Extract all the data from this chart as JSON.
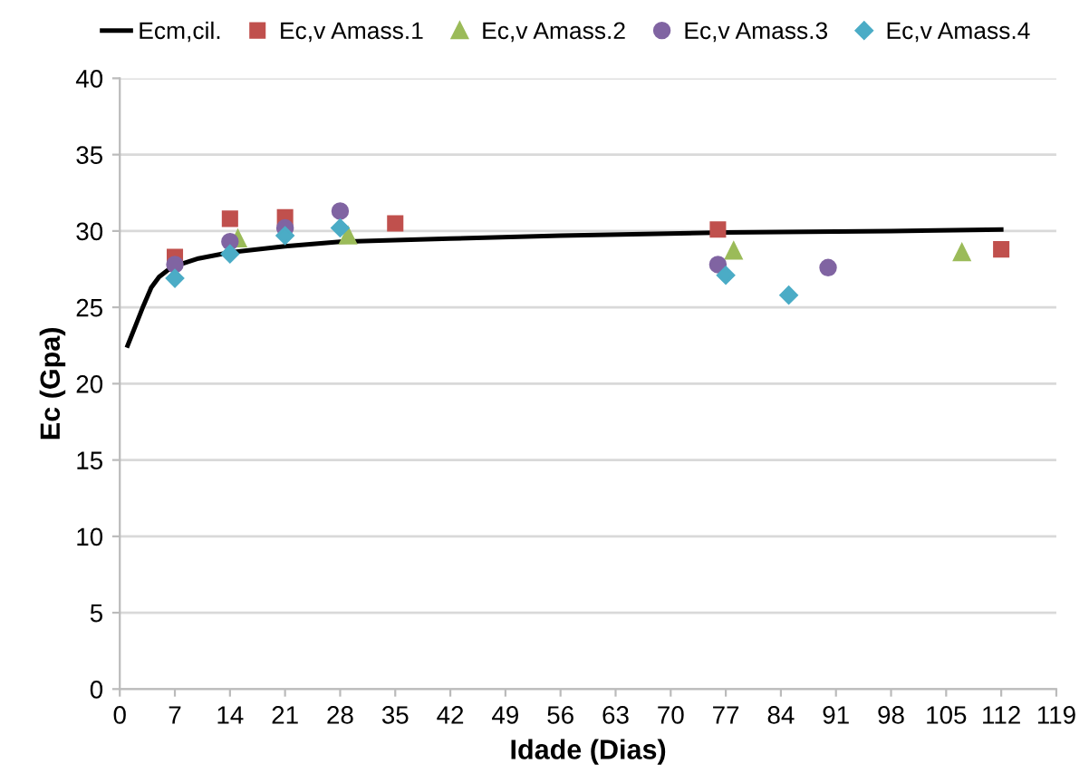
{
  "chart_data": {
    "type": "scatter",
    "xlabel": "Idade (Dias)",
    "ylabel": "Ec (Gpa)",
    "xlim": [
      0,
      119
    ],
    "xticks": [
      0,
      7,
      14,
      21,
      28,
      35,
      42,
      49,
      56,
      63,
      70,
      77,
      84,
      91,
      98,
      105,
      112,
      119
    ],
    "ylim": [
      0,
      40
    ],
    "yticks": [
      0,
      5,
      10,
      15,
      20,
      25,
      30,
      35,
      40
    ],
    "grid": "y",
    "legend": "top",
    "series": [
      {
        "name": "Ecm,cil.",
        "type": "line",
        "color": "#000000",
        "marker": "none",
        "x": [
          1,
          2,
          3,
          4,
          5,
          6,
          7,
          10,
          14,
          21,
          28,
          42,
          56,
          77,
          98,
          112
        ],
        "values": [
          22.5,
          23.8,
          25.1,
          26.3,
          27.0,
          27.4,
          27.7,
          28.2,
          28.6,
          29.0,
          29.3,
          29.5,
          29.7,
          29.9,
          30.0,
          30.1
        ]
      },
      {
        "name": "Ec,v Amass.1",
        "color": "#c0504d",
        "marker": "square",
        "x": [
          7,
          14,
          21,
          35,
          76,
          112
        ],
        "values": [
          28.3,
          30.8,
          30.9,
          30.5,
          30.1,
          28.8
        ]
      },
      {
        "name": "Ec,v Amass.2",
        "color": "#9bbb59",
        "marker": "triangle",
        "x": [
          15,
          29,
          78,
          107
        ],
        "values": [
          29.5,
          29.7,
          28.7,
          28.6
        ]
      },
      {
        "name": "Ec,v Amass.3",
        "color": "#8064a2",
        "marker": "circle",
        "x": [
          7,
          14,
          21,
          28,
          76,
          90
        ],
        "values": [
          27.8,
          29.3,
          30.2,
          31.3,
          27.8,
          27.6
        ]
      },
      {
        "name": "Ec,v Amass.4",
        "color": "#4bacc6",
        "marker": "diamond",
        "x": [
          7,
          14,
          21,
          28,
          77,
          85
        ],
        "values": [
          26.9,
          28.5,
          29.7,
          30.2,
          27.1,
          25.8
        ]
      }
    ]
  }
}
